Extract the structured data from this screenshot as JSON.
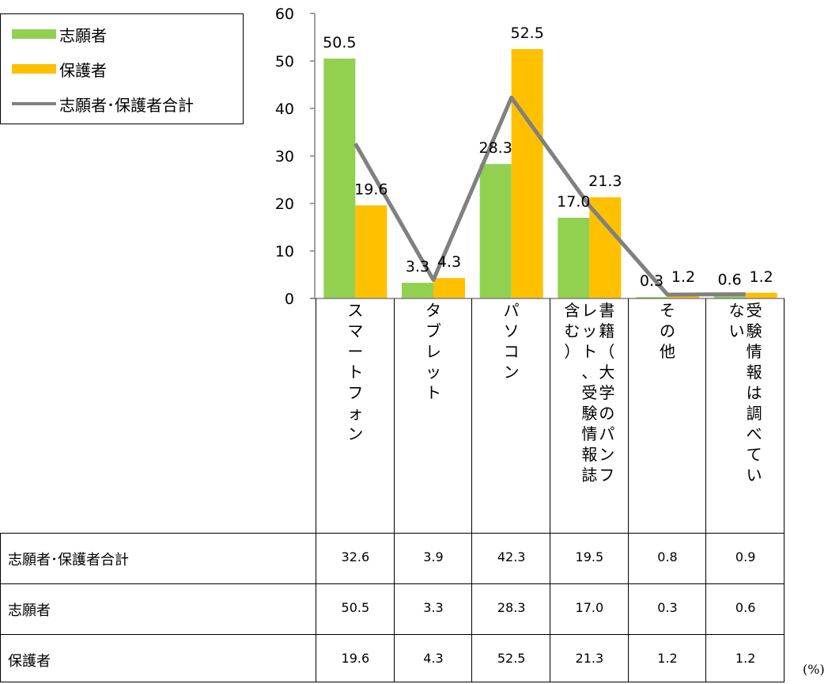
{
  "chart_data": {
    "type": "bar",
    "categories": [
      "スマートフォン",
      "タブレット",
      "パソコン",
      "書籍（大学のパンフレット、受験情報誌含む）",
      "その他",
      "受験情報は調べていない"
    ],
    "category_columns": [
      [
        [
          "ス",
          "マ",
          "ー",
          "ト",
          "フ",
          "ォ",
          "ン"
        ]
      ],
      [
        [
          "タ",
          "ブ",
          "レ",
          "ッ",
          "ト"
        ]
      ],
      [
        [
          "パ",
          "ソ",
          "コ",
          "ン"
        ]
      ],
      [
        [
          "書",
          "籍",
          "（",
          "大",
          "学",
          "の",
          "パ",
          "ン",
          "フ"
        ],
        [
          "レ",
          "ッ",
          "ト",
          "、",
          "受",
          "験",
          "情",
          "報",
          "誌"
        ],
        [
          "含",
          "む",
          "）"
        ]
      ],
      [
        [
          "そ",
          "の",
          "他"
        ]
      ],
      [
        [
          "受",
          "験",
          "情",
          "報",
          "は",
          "調",
          "べ",
          "て",
          "い"
        ],
        [
          "な",
          "い"
        ]
      ]
    ],
    "series": [
      {
        "name": "志願者",
        "type": "bar",
        "color": "#92D050",
        "values": [
          50.5,
          3.3,
          28.3,
          17.0,
          0.3,
          0.6
        ],
        "labels": [
          "50.5",
          "3.3",
          "28.3",
          "17.0",
          "0.3",
          "0.6"
        ]
      },
      {
        "name": "保護者",
        "type": "bar",
        "color": "#FFC000",
        "values": [
          19.6,
          4.3,
          52.5,
          21.3,
          1.2,
          1.2
        ],
        "labels": [
          "19.6",
          "4.3",
          "52.5",
          "21.3",
          "1.2",
          "1.2"
        ]
      },
      {
        "name": "志願者･保護者合計",
        "type": "line",
        "color": "#808080",
        "values": [
          32.6,
          3.9,
          42.3,
          19.5,
          0.8,
          0.9
        ]
      }
    ],
    "yticks": [
      "0",
      "10",
      "20",
      "30",
      "40",
      "50",
      "60"
    ],
    "ylim": [
      0,
      60
    ],
    "grid": false,
    "legend_position": "top-left"
  },
  "legend": [
    {
      "label": "志願者",
      "color": "#92D050",
      "kind": "bar"
    },
    {
      "label": "保護者",
      "color": "#FFC000",
      "kind": "bar"
    },
    {
      "label": "志願者･保護者合計",
      "color": "#808080",
      "kind": "line"
    }
  ],
  "table": {
    "rows": [
      {
        "label": "志願者･保護者合計",
        "values": [
          "32.6",
          "3.9",
          "42.3",
          "19.5",
          "0.8",
          "0.9"
        ]
      },
      {
        "label": "志願者",
        "values": [
          "50.5",
          "3.3",
          "28.3",
          "17.0",
          "0.3",
          "0.6"
        ]
      },
      {
        "label": "保護者",
        "values": [
          "19.6",
          "4.3",
          "52.5",
          "21.3",
          "1.2",
          "1.2"
        ]
      }
    ]
  },
  "unit": "(%)"
}
